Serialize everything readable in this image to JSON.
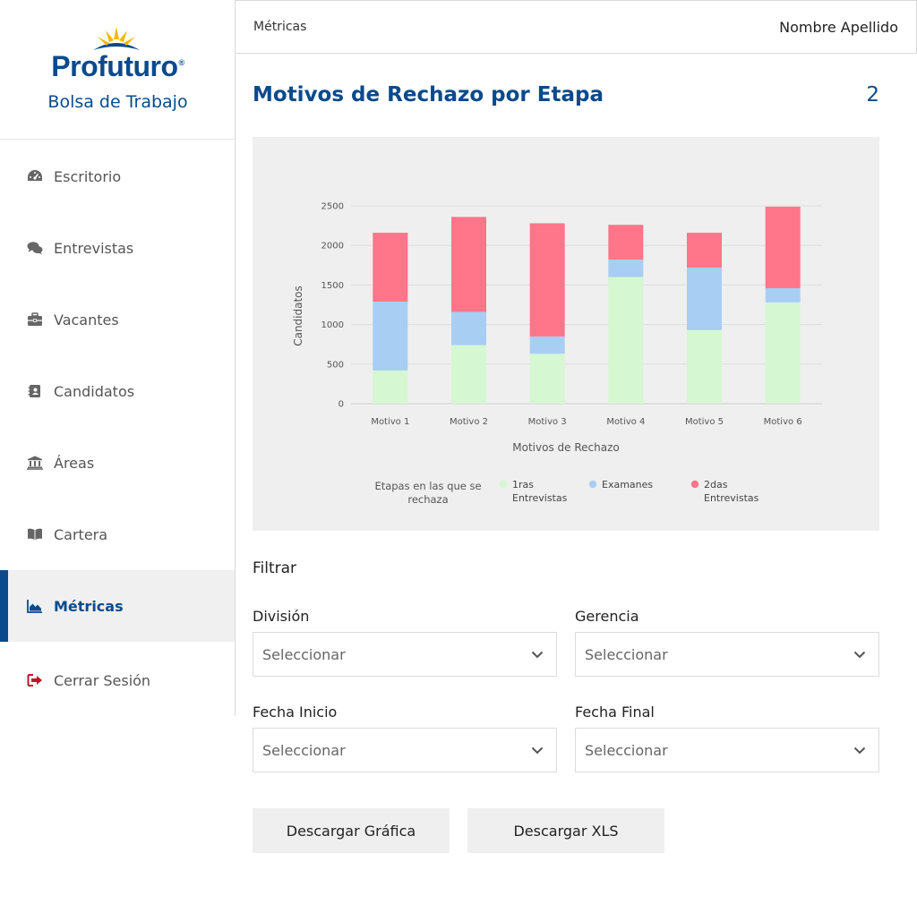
{
  "brand": {
    "name": "Profuturo",
    "mark": "®",
    "subtitle": "Bolsa de Trabajo",
    "colors": {
      "primary": "#0a4a8c",
      "sun": "#f5b800"
    }
  },
  "sidebar": {
    "items": [
      {
        "label": "Escritorio",
        "icon": "dashboard-icon"
      },
      {
        "label": "Entrevistas",
        "icon": "comments-icon"
      },
      {
        "label": "Vacantes",
        "icon": "briefcase-icon"
      },
      {
        "label": "Candidatos",
        "icon": "contact-book-icon"
      },
      {
        "label": "Áreas",
        "icon": "institution-icon"
      },
      {
        "label": "Cartera",
        "icon": "book-icon"
      },
      {
        "label": "Métricas",
        "icon": "area-chart-icon",
        "active": true
      }
    ],
    "logout": {
      "label": "Cerrar Sesión",
      "icon": "sign-out-icon",
      "color": "#c8102e"
    }
  },
  "header": {
    "breadcrumb": "Métricas",
    "user": "Nombre Apellido"
  },
  "main": {
    "title": "Motivos de Rechazo por Etapa",
    "count": "2"
  },
  "chart_data": {
    "type": "bar",
    "stacked": true,
    "categories": [
      "Motivo 1",
      "Motivo 2",
      "Motivo 3",
      "Motivo 4",
      "Motivo 5",
      "Motivo 6"
    ],
    "series": [
      {
        "name": "1ras Entrevistas",
        "color": "#d5f7d2",
        "values": [
          420,
          740,
          630,
          1600,
          930,
          1280
        ]
      },
      {
        "name": "Examanes",
        "color": "#a9cef4",
        "values": [
          870,
          420,
          220,
          220,
          790,
          180
        ]
      },
      {
        "name": "2das Entrevistas",
        "color": "#ff7589",
        "values": [
          870,
          1200,
          1430,
          440,
          440,
          1030
        ]
      }
    ],
    "xlabel": "Motivos de Rechazo",
    "ylabel": "Candidatos",
    "ylim": [
      0,
      2500
    ],
    "yticks": [
      0,
      500,
      1000,
      1500,
      2000,
      2500
    ],
    "grid": true,
    "legend_title": "Etapas en las que se rechaza",
    "legend_position": "bottom"
  },
  "filters": {
    "title": "Filtrar",
    "division": {
      "label": "División",
      "placeholder": "Seleccionar"
    },
    "gerencia": {
      "label": "Gerencia",
      "placeholder": "Seleccionar"
    },
    "fecha_inicio": {
      "label": "Fecha Inicio",
      "placeholder": "Seleccionar"
    },
    "fecha_final": {
      "label": "Fecha Final",
      "placeholder": "Seleccionar"
    }
  },
  "actions": {
    "download_chart": "Descargar Gráfica",
    "download_xls": "Descargar XLS"
  }
}
